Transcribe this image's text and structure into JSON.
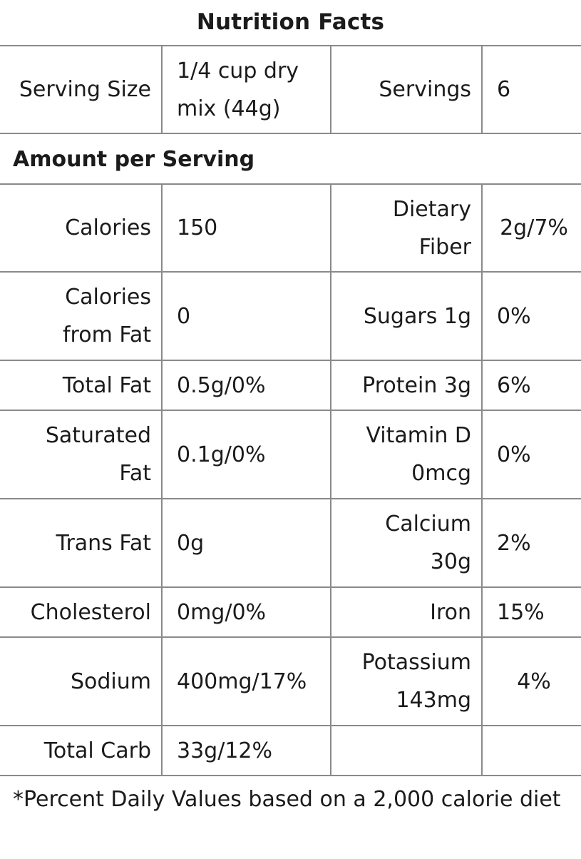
{
  "title": "Nutrition Facts",
  "serving": {
    "size_label": "Serving Size",
    "size_value": "1/4 cup dry mix (44g)",
    "servings_label": "Servings",
    "servings_value": "6"
  },
  "section_heading": "Amount per Serving",
  "rows": [
    {
      "label": "Calories",
      "value": "150",
      "label2": "Dietary Fiber",
      "value2": "2g/7%"
    },
    {
      "label": "Calories from Fat",
      "value": "0",
      "label2": "Sugars 1g",
      "value2": "0%"
    },
    {
      "label": "Total Fat",
      "value": "0.5g/0%",
      "label2": "Protein 3g",
      "value2": "6%"
    },
    {
      "label": "Saturated Fat",
      "value": "0.1g/0%",
      "label2": "Vitamin D 0mcg",
      "value2": "0%"
    },
    {
      "label": "Trans Fat",
      "value": "0g",
      "label2": "Calcium 30g",
      "value2": "2%"
    },
    {
      "label": "Cholesterol",
      "value": "0mg/0%",
      "label2": "Iron",
      "value2": "15%"
    },
    {
      "label": "Sodium",
      "value": "400mg/17%",
      "label2": "Potassium 143mg",
      "value2": "4%"
    },
    {
      "label": "Total Carb",
      "value": "33g/12%",
      "label2": "",
      "value2": ""
    }
  ],
  "footnote": "*Percent Daily Values based on a 2,000 calorie diet"
}
